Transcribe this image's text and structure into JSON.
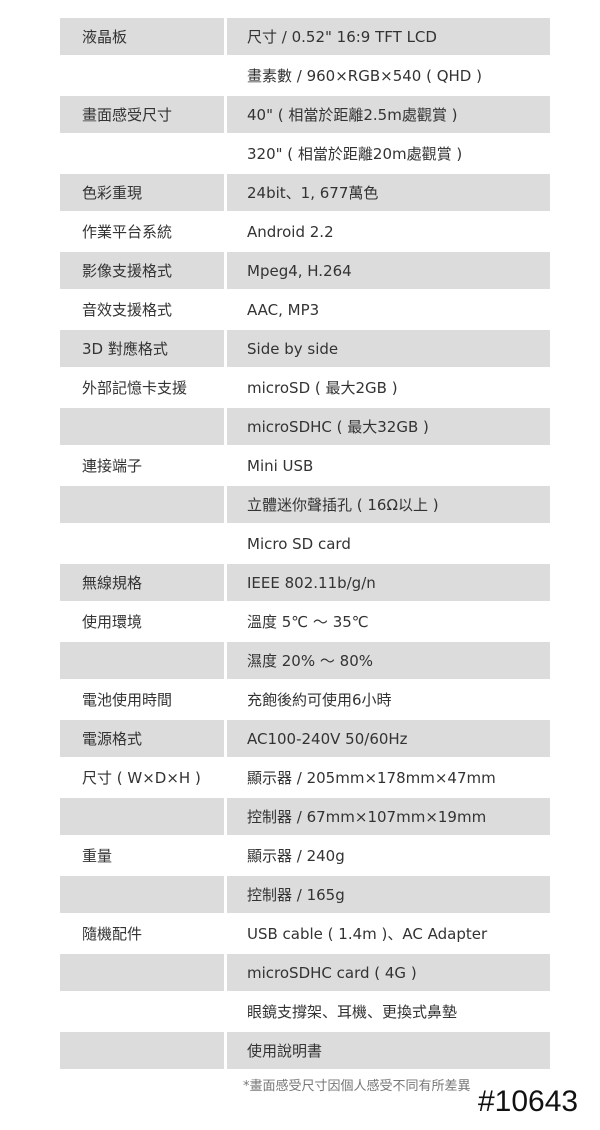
{
  "rows": [
    {
      "label": "液晶板",
      "value": "尺寸 / 0.52\" 16:9 TFT LCD"
    },
    {
      "label": "",
      "value": "畫素數 / 960×RGB×540 ( QHD )"
    },
    {
      "label": "畫面感受尺寸",
      "value": "40\" ( 相當於距離2.5m處觀賞 )"
    },
    {
      "label": "",
      "value": "320\" ( 相當於距離20m處觀賞 )"
    },
    {
      "label": "色彩重現",
      "value": "24bit、1, 677萬色"
    },
    {
      "label": "作業平台系統",
      "value": "Android 2.2"
    },
    {
      "label": "影像支援格式",
      "value": "Mpeg4, H.264"
    },
    {
      "label": "音效支援格式",
      "value": "AAC, MP3"
    },
    {
      "label": "3D 對應格式",
      "value": "Side by side"
    },
    {
      "label": "外部記憶卡支援",
      "value": "microSD ( 最大2GB )"
    },
    {
      "label": "",
      "value": "microSDHC ( 最大32GB )"
    },
    {
      "label": "連接端子",
      "value": "Mini USB"
    },
    {
      "label": "",
      "value": "立體迷你聲插孔 ( 16Ω以上 )"
    },
    {
      "label": "",
      "value": "Micro SD card"
    },
    {
      "label": "無線規格",
      "value": "IEEE 802.11b/g/n"
    },
    {
      "label": "使用環境",
      "value": "溫度 5℃ ～ 35℃"
    },
    {
      "label": "",
      "value": "濕度 20% ～ 80%"
    },
    {
      "label": "電池使用時間",
      "value": "充飽後約可使用6小時"
    },
    {
      "label": "電源格式",
      "value": "AC100-240V 50/60Hz"
    },
    {
      "label": "尺寸 ( W×D×H )",
      "value": "顯示器 / 205mm×178mm×47mm"
    },
    {
      "label": "",
      "value": "控制器 / 67mm×107mm×19mm"
    },
    {
      "label": "重量",
      "value": "顯示器 / 240g"
    },
    {
      "label": "",
      "value": "控制器 / 165g"
    },
    {
      "label": "隨機配件",
      "value": "USB cable ( 1.4m )、AC Adapter"
    },
    {
      "label": "",
      "value": "microSDHC card ( 4G )"
    },
    {
      "label": "",
      "value": "眼鏡支撐架、耳機、更換式鼻墊"
    },
    {
      "label": "",
      "value": "使用說明書"
    }
  ],
  "footnote": "*畫面感受尺寸因個人感受不同有所差異",
  "watermark": "#10643",
  "colors": {
    "shade": "#dcdcdc",
    "text": "#333333"
  }
}
